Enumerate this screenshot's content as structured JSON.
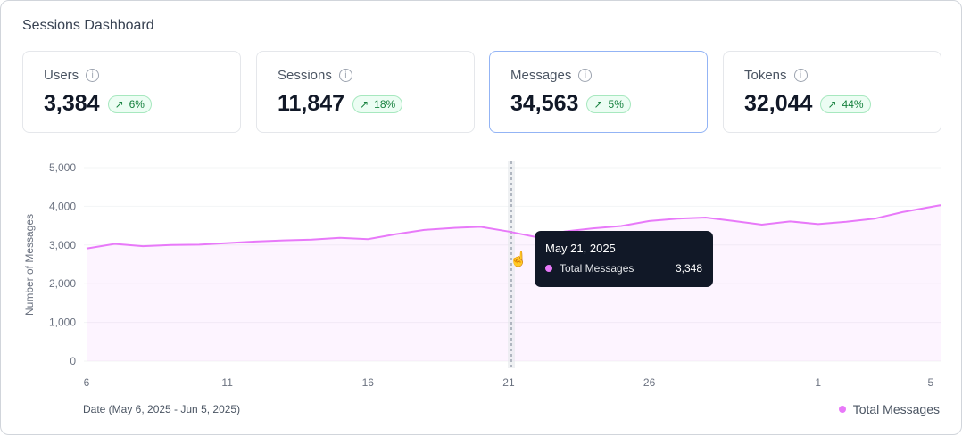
{
  "title": "Sessions Dashboard",
  "cards": [
    {
      "label": "Users",
      "value": "3,384",
      "change": "6%"
    },
    {
      "label": "Sessions",
      "value": "11,847",
      "change": "18%"
    },
    {
      "label": "Messages",
      "value": "34,563",
      "change": "5%",
      "selected": true
    },
    {
      "label": "Tokens",
      "value": "32,044",
      "change": "44%"
    }
  ],
  "colors": {
    "series": "#e879f9",
    "accent_border": "#93b4f5",
    "badge_text": "#15803d"
  },
  "tooltip": {
    "date": "May 21, 2025",
    "series": "Total Messages",
    "value": "3,348"
  },
  "date_range": "Date (May 6, 2025 - Jun 5, 2025)",
  "legend": "Total Messages",
  "chart_data": {
    "type": "area",
    "ylabel": "Number of Messages",
    "ylim": [
      0,
      5000
    ],
    "yticks": [
      "0",
      "1,000",
      "2,000",
      "3,000",
      "4,000",
      "5,000"
    ],
    "xticks": [
      "6",
      "11",
      "16",
      "21",
      "26",
      "1",
      "5"
    ],
    "x": [
      "May 6",
      "May 7",
      "May 8",
      "May 9",
      "May 10",
      "May 11",
      "May 12",
      "May 13",
      "May 14",
      "May 15",
      "May 16",
      "May 17",
      "May 18",
      "May 19",
      "May 20",
      "May 21",
      "May 22",
      "May 23",
      "May 24",
      "May 25",
      "May 26",
      "May 27",
      "May 28",
      "May 29",
      "May 30",
      "May 31",
      "Jun 1",
      "Jun 2",
      "Jun 3",
      "Jun 4",
      "Jun 5"
    ],
    "series": [
      {
        "name": "Total Messages",
        "values": [
          2910,
          3030,
          2970,
          3000,
          3010,
          3050,
          3090,
          3120,
          3140,
          3185,
          3150,
          3280,
          3390,
          3440,
          3470,
          3348,
          3200,
          3350,
          3430,
          3490,
          3620,
          3680,
          3710,
          3620,
          3525,
          3610,
          3540,
          3600,
          3680,
          3850,
          4030
        ]
      }
    ],
    "grid": true,
    "legend_position": "bottom-right"
  }
}
